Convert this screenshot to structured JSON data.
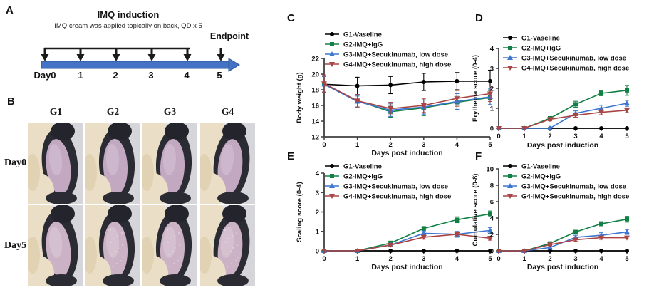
{
  "figure": {
    "panel_labels": {
      "a": "A",
      "b": "B",
      "c": "C",
      "d": "D",
      "e": "E",
      "f": "F"
    }
  },
  "panel_a": {
    "label": "A",
    "title": "IMQ induction",
    "subtitle": "IMQ cream was applied topically on back, QD x 5",
    "endpoint_label": "Endpoint",
    "day_labels": [
      "Day0",
      "1",
      "2",
      "3",
      "4",
      "5"
    ],
    "timeline_color": "#4472c4"
  },
  "panel_b": {
    "label": "B",
    "columns": [
      "G1",
      "G2",
      "G3",
      "G4"
    ],
    "rows": [
      "Day0",
      "Day5"
    ],
    "photo_colors": {
      "background": "#e3e3e7",
      "glove": "#eadfc6",
      "glove_shadow": "#d8c5a1",
      "fur": "#2b2b33",
      "skin_day0": "#c3a8c2",
      "skin_day5": "#ccb2c5"
    }
  },
  "series_colors": {
    "g1": "#000000",
    "g2": "#128045",
    "g3": "#3b76d1",
    "g4": "#a94445"
  },
  "chart_data": [
    {
      "panel": "C",
      "type": "line",
      "ylabel": "Body weight (g)",
      "xlabel": "Days post induction",
      "x": [
        0,
        1,
        2,
        3,
        4,
        5
      ],
      "ylim": [
        12,
        22
      ],
      "yticks": [
        12,
        14,
        16,
        18,
        20,
        22
      ],
      "xticks": [
        0,
        1,
        2,
        3,
        4,
        5
      ],
      "legend_position": "top-left",
      "grid": false,
      "series": [
        {
          "name": "G1-Vaseline",
          "marker": "circle",
          "color": "#000000",
          "values": [
            18.7,
            18.5,
            18.6,
            19.0,
            19.1,
            19.1
          ],
          "errors": [
            1.0,
            1.1,
            1.1,
            1.1,
            1.1,
            1.4
          ]
        },
        {
          "name": "G2-IMQ+IgG",
          "marker": "square",
          "color": "#128045",
          "values": [
            18.7,
            16.6,
            15.2,
            15.7,
            16.4,
            17.0
          ],
          "errors": [
            1.0,
            0.8,
            0.7,
            1.0,
            0.9,
            0.9
          ]
        },
        {
          "name": "G3-IMQ+Secukinumab, low dose",
          "marker": "triangle-up",
          "color": "#3b76d1",
          "values": [
            18.7,
            16.5,
            15.4,
            15.8,
            16.5,
            17.1
          ],
          "errors": [
            1.0,
            0.7,
            0.8,
            0.9,
            1.0,
            1.0
          ]
        },
        {
          "name": "G4-IMQ+Secukinumab, high dose",
          "marker": "triangle-down",
          "color": "#a94445",
          "values": [
            18.8,
            16.6,
            15.6,
            16.0,
            16.9,
            17.5
          ],
          "errors": [
            1.1,
            0.8,
            0.8,
            0.9,
            1.0,
            1.0
          ]
        }
      ]
    },
    {
      "panel": "D",
      "type": "line",
      "ylabel": "Erythema score (0-4)",
      "xlabel": "Days post induction",
      "x": [
        0,
        1,
        2,
        3,
        4,
        5
      ],
      "ylim": [
        0,
        4
      ],
      "yticks": [
        0,
        1,
        2,
        3,
        4
      ],
      "xticks": [
        0,
        1,
        2,
        3,
        4,
        5
      ],
      "legend_position": "top-left",
      "grid": false,
      "series": [
        {
          "name": "G1-Vaseline",
          "marker": "circle",
          "color": "#000000",
          "values": [
            0,
            0,
            0,
            0,
            0,
            0
          ],
          "errors": [
            0,
            0,
            0,
            0,
            0,
            0
          ]
        },
        {
          "name": "G2-IMQ+IgG",
          "marker": "square",
          "color": "#128045",
          "values": [
            0,
            0,
            0.5,
            1.2,
            1.75,
            1.9
          ],
          "errors": [
            0,
            0,
            0.08,
            0.15,
            0.12,
            0.25
          ]
        },
        {
          "name": "G3-IMQ+Secukinumab, low dose",
          "marker": "triangle-up",
          "color": "#3b76d1",
          "values": [
            0,
            0,
            0,
            0.75,
            1.0,
            1.25
          ],
          "errors": [
            0,
            0,
            0,
            0.12,
            0.15,
            0.15
          ]
        },
        {
          "name": "G4-IMQ+Secukinumab, high dose",
          "marker": "triangle-down",
          "color": "#a94445",
          "values": [
            0,
            0,
            0.45,
            0.65,
            0.8,
            0.9
          ],
          "errors": [
            0,
            0,
            0.08,
            0.1,
            0.12,
            0.12
          ]
        }
      ]
    },
    {
      "panel": "E",
      "type": "line",
      "ylabel": "Scaling score (0-4)",
      "xlabel": "Days post induction",
      "x": [
        0,
        1,
        2,
        3,
        4,
        5
      ],
      "ylim": [
        0,
        4
      ],
      "yticks": [
        0,
        1,
        2,
        3,
        4
      ],
      "xticks": [
        0,
        1,
        2,
        3,
        4,
        5
      ],
      "legend_position": "top-left",
      "grid": false,
      "series": [
        {
          "name": "G1-Vaseline",
          "marker": "circle",
          "color": "#000000",
          "values": [
            0,
            0,
            0,
            0,
            0,
            0
          ],
          "errors": [
            0,
            0,
            0,
            0,
            0,
            0
          ]
        },
        {
          "name": "G2-IMQ+IgG",
          "marker": "square",
          "color": "#128045",
          "values": [
            0,
            0,
            0.4,
            1.15,
            1.6,
            1.9
          ],
          "errors": [
            0,
            0,
            0.1,
            0.1,
            0.15,
            0.15
          ]
        },
        {
          "name": "G3-IMQ+Secukinumab, low dose",
          "marker": "triangle-up",
          "color": "#3b76d1",
          "values": [
            0,
            0,
            0.3,
            0.9,
            0.85,
            1.05
          ],
          "errors": [
            0,
            0,
            0.08,
            0.12,
            0.15,
            0.15
          ]
        },
        {
          "name": "G4-IMQ+Secukinumab, high dose",
          "marker": "triangle-down",
          "color": "#a94445",
          "values": [
            0,
            0,
            0.3,
            0.7,
            0.85,
            0.65
          ],
          "errors": [
            0,
            0,
            0.08,
            0.1,
            0.12,
            0.1
          ]
        }
      ]
    },
    {
      "panel": "F",
      "type": "line",
      "ylabel": "Cumulative score (0-8)",
      "xlabel": "Days post induction",
      "x": [
        0,
        1,
        2,
        3,
        4,
        5
      ],
      "ylim": [
        0,
        10
      ],
      "yticks": [
        0,
        2,
        4,
        6,
        8,
        10
      ],
      "xticks": [
        0,
        1,
        2,
        3,
        4,
        5
      ],
      "legend_position": "top-left",
      "grid": false,
      "series": [
        {
          "name": "G1-Vaseline",
          "marker": "circle",
          "color": "#000000",
          "values": [
            0,
            0,
            0,
            0,
            0,
            0
          ],
          "errors": [
            0,
            0,
            0,
            0,
            0,
            0
          ]
        },
        {
          "name": "G2-IMQ+IgG",
          "marker": "square",
          "color": "#128045",
          "values": [
            0,
            0,
            0.9,
            2.3,
            3.3,
            3.85
          ],
          "errors": [
            0,
            0,
            0.15,
            0.2,
            0.25,
            0.35
          ]
        },
        {
          "name": "G3-IMQ+Secukinumab, low dose",
          "marker": "triangle-up",
          "color": "#3b76d1",
          "values": [
            0,
            0,
            0.4,
            1.65,
            1.9,
            2.3
          ],
          "errors": [
            0,
            0,
            0.1,
            0.25,
            0.3,
            0.3
          ]
        },
        {
          "name": "G4-IMQ+Secukinumab, high dose",
          "marker": "triangle-down",
          "color": "#a94445",
          "values": [
            0,
            0,
            0.75,
            1.35,
            1.6,
            1.6
          ],
          "errors": [
            0,
            0,
            0.12,
            0.2,
            0.2,
            0.15
          ]
        }
      ]
    }
  ]
}
